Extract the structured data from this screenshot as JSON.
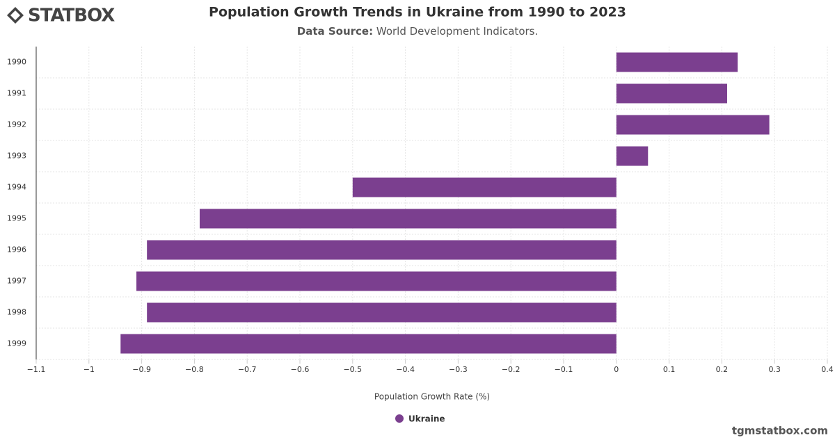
{
  "brand": "STATBOX",
  "footer": "tgmstatbox.com",
  "chart_data": {
    "type": "bar",
    "orientation": "horizontal",
    "title": "Population Growth Trends in Ukraine from 1990 to 2023",
    "subtitle_label": "Data Source:",
    "subtitle": "World Development Indicators.",
    "x_label": "Population Growth Rate (%)",
    "categories": [
      "1990",
      "1991",
      "1992",
      "1993",
      "1994",
      "1995",
      "1996",
      "1997",
      "1998",
      "1999"
    ],
    "series": [
      {
        "name": "Ukraine",
        "color": "#7b3f8f",
        "values": [
          0.23,
          0.21,
          0.29,
          0.06,
          -0.5,
          -0.79,
          -0.89,
          -0.91,
          -0.89,
          -0.94
        ]
      }
    ],
    "xlim": [
      -1.1,
      0.4
    ],
    "xticks": [
      {
        "value": -1.1,
        "label": "−1.1"
      },
      {
        "value": -1,
        "label": "−1"
      },
      {
        "value": -0.9,
        "label": "−0.9"
      },
      {
        "value": -0.8,
        "label": "−0.8"
      },
      {
        "value": -0.7,
        "label": "−0.7"
      },
      {
        "value": -0.6,
        "label": "−0.6"
      },
      {
        "value": -0.5,
        "label": "−0.5"
      },
      {
        "value": -0.4,
        "label": "−0.4"
      },
      {
        "value": -0.3,
        "label": "−0.3"
      },
      {
        "value": -0.2,
        "label": "−0.2"
      },
      {
        "value": -0.1,
        "label": "−0.1"
      },
      0,
      0.1,
      0.2,
      0.3,
      0.4
    ],
    "grid": true
  }
}
